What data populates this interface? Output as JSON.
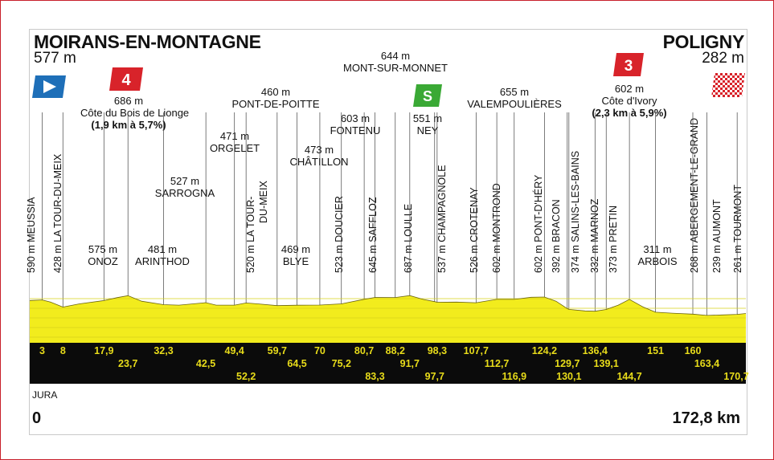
{
  "start": {
    "name": "MOIRANS-EN-MONTAGNE",
    "altitude": "577 m"
  },
  "finish": {
    "name": "POLIGNY",
    "altitude": "282 m"
  },
  "region": "JURA",
  "distance_start": "0",
  "distance_total": "172,8 km",
  "climbs": [
    {
      "category": "4",
      "altitude": "686 m",
      "name": "Côte du Bois de Lionge",
      "detail": "(1,9 km à 5,7%)"
    },
    {
      "category": "3",
      "altitude": "602 m",
      "name": "Côte d'Ivory",
      "detail": "(2,3 km à 5,9%)"
    }
  ],
  "sprint": {
    "label": "S",
    "altitude": "551 m",
    "name": "NEY"
  },
  "top_labels": [
    {
      "alt": "527 m",
      "name": "SARROGNA"
    },
    {
      "alt": "471 m",
      "name": "ORGELET"
    },
    {
      "alt": "460 m",
      "name": "PONT-DE-POITTE"
    },
    {
      "alt": "473 m",
      "name": "CHÂTILLON"
    },
    {
      "alt": "603 m",
      "name": "FONTENU"
    },
    {
      "alt": "644 m",
      "name": "MONT-SUR-MONNET"
    },
    {
      "alt": "655 m",
      "name": "VALEMPOULIÈRES"
    }
  ],
  "mid_labels": [
    {
      "alt": "575 m",
      "name": "ONOZ"
    },
    {
      "alt": "481 m",
      "name": "ARINTHOD"
    },
    {
      "alt": "469 m",
      "name": "BLYE"
    },
    {
      "alt": "311 m",
      "name": "ARBOIS"
    }
  ],
  "vertical_labels": [
    {
      "text": "590 m MEUSSIA"
    },
    {
      "text": "428 m LA TOUR-DU-MEIX"
    },
    {
      "text": "520 m LA TOUR-"
    },
    {
      "text": "DU-MEIX"
    },
    {
      "text": "523 m DOUCIER"
    },
    {
      "text": "645 m SAFFLOZ"
    },
    {
      "text": "687 m LOULLE"
    },
    {
      "text": "537 m CHAMPAGNOLE"
    },
    {
      "text": "526 m CROTENAY"
    },
    {
      "text": "602 m MONTROND"
    },
    {
      "text": "602 m PONT-D'HÉRY"
    },
    {
      "text": "392 m BRACON"
    },
    {
      "text": "374 m SALINS-LES-BAINS"
    },
    {
      "text": "332 m MARNOZ"
    },
    {
      "text": "373 m PRETIN"
    },
    {
      "text": "268 m ABERGEMENT-LE-GRAND"
    },
    {
      "text": "239 m AUMONT"
    },
    {
      "text": "261 m TOURMONT"
    }
  ],
  "km_row1": [
    "3",
    "8",
    "17,9",
    "32,3",
    "49,4",
    "59,7",
    "70",
    "80,7",
    "88,2",
    "98,3",
    "107,7",
    "124,2",
    "136,4",
    "151",
    "160"
  ],
  "km_row2": [
    "23,7",
    "42,5",
    "64,5",
    "75,2",
    "91,7",
    "112,7",
    "129,7",
    "139,1",
    "163,4"
  ],
  "km_row3": [
    "52,2",
    "83,3",
    "97,7",
    "116,9",
    "130,1",
    "144,7",
    "170,7"
  ],
  "colors": {
    "profile": "#f2ec1d",
    "band": "#0b0b0b",
    "km_text": "#e8dc1a",
    "frame": "#c8202a",
    "cat4": "#d8232a",
    "sprint": "#3aa935",
    "start_flag": "#1e6fb8"
  },
  "profile": {
    "x_km": [
      0,
      3,
      5,
      8,
      12,
      17.9,
      21,
      23.7,
      27,
      32.3,
      36,
      42.5,
      45,
      49.4,
      52.2,
      55,
      59.7,
      64.5,
      70,
      75.2,
      80.7,
      83.3,
      88.2,
      91.7,
      95,
      97.7,
      98.3,
      103,
      107.7,
      112.7,
      116.9,
      121,
      124.2,
      127,
      129.7,
      130.1,
      134,
      136.4,
      139.1,
      142,
      144.7,
      148,
      151,
      155,
      160,
      163.4,
      167,
      170.7,
      172.8
    ],
    "alt_m": [
      577,
      590,
      540,
      428,
      500,
      575,
      640,
      686,
      560,
      481,
      470,
      527,
      470,
      471,
      520,
      500,
      460,
      469,
      473,
      500,
      603,
      645,
      644,
      687,
      600,
      551,
      537,
      540,
      526,
      602,
      602,
      650,
      655,
      560,
      392,
      374,
      340,
      332,
      373,
      470,
      602,
      430,
      311,
      290,
      268,
      239,
      250,
      261,
      282
    ]
  }
}
